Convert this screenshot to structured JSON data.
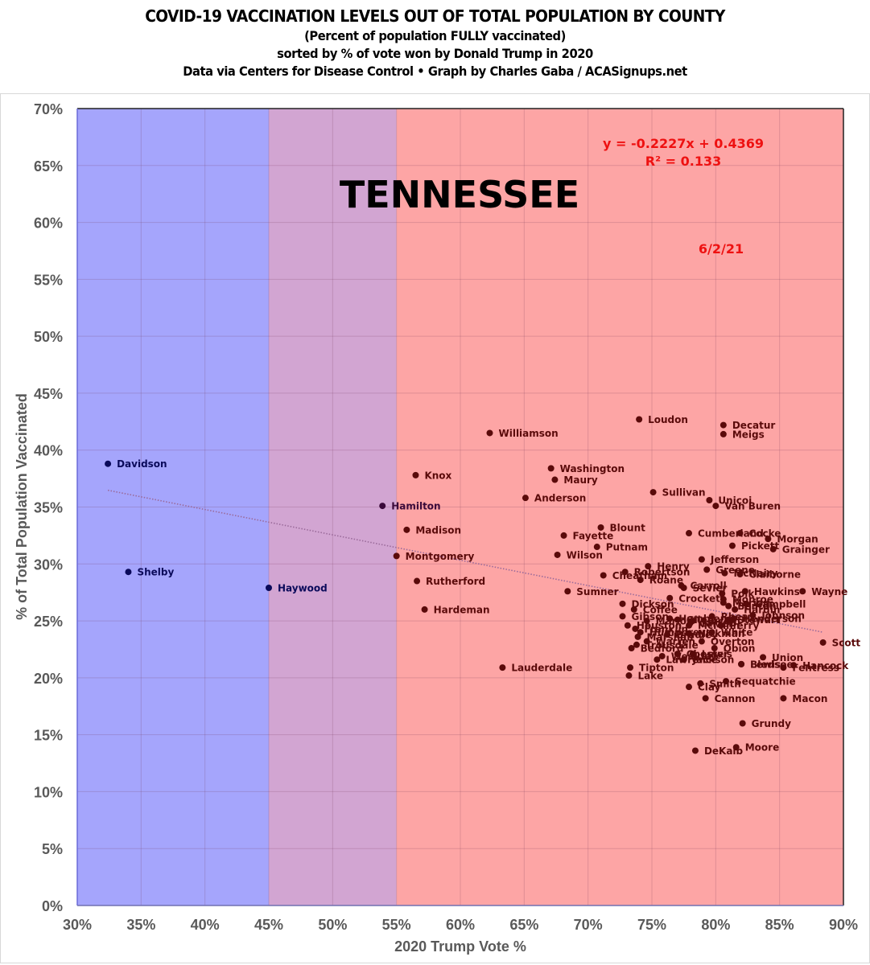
{
  "header": {
    "title": "COVID-19 VACCINATION LEVELS OUT OF TOTAL POPULATION BY COUNTY",
    "subtitle1": "(Percent of population FULLY vaccinated)",
    "subtitle2": "sorted by % of vote won by Donald Trump in 2020",
    "subtitle3": "Data via Centers for Disease Control • Graph by Charles Gaba / ACASignups.net"
  },
  "chart_data": {
    "type": "scatter",
    "title": "COVID-19 VACCINATION LEVELS OUT OF TOTAL POPULATION BY COUNTY",
    "state_label": "TENNESSEE",
    "date_label": "6/2/21",
    "xlabel": "2020 Trump Vote %",
    "ylabel": "% of Total Population Vaccinated",
    "xlim": [
      30,
      90
    ],
    "ylim": [
      0,
      70
    ],
    "x_ticks": [
      "30%",
      "35%",
      "40%",
      "45%",
      "50%",
      "55%",
      "60%",
      "65%",
      "70%",
      "75%",
      "80%",
      "85%",
      "90%"
    ],
    "y_ticks": [
      "0%",
      "5%",
      "10%",
      "15%",
      "20%",
      "25%",
      "30%",
      "35%",
      "40%",
      "45%",
      "50%",
      "55%",
      "60%",
      "65%",
      "70%"
    ],
    "grid": true,
    "background_bands": [
      {
        "from": 30,
        "to": 45,
        "color": "#a5a5fc",
        "meaning": "Biden-won"
      },
      {
        "from": 45,
        "to": 55,
        "color": "#d2a5d2",
        "meaning": "swing"
      },
      {
        "from": 55,
        "to": 90,
        "color": "#fda5a5",
        "meaning": "Trump-won"
      }
    ],
    "trendline": {
      "equation": "y = -0.2227x + 0.4369",
      "r_squared": "R² = 0.133",
      "slope": -0.2227,
      "intercept": 0.4369,
      "x_range": [
        32.4,
        88.4
      ]
    },
    "colors": {
      "blue_point": "#0a0a5a",
      "red_point": "#5a0a0a",
      "purple_point": "#3a0a3a",
      "equation": "#ee1111"
    },
    "points": [
      {
        "name": "Davidson",
        "x": 32.4,
        "y": 38.8,
        "c": "blue"
      },
      {
        "name": "Shelby",
        "x": 34.0,
        "y": 29.3,
        "c": "blue"
      },
      {
        "name": "Haywood",
        "x": 45.0,
        "y": 27.9,
        "c": "blue"
      },
      {
        "name": "Hamilton",
        "x": 53.9,
        "y": 35.1,
        "c": "purple"
      },
      {
        "name": "Montgomery",
        "x": 55.0,
        "y": 30.7,
        "c": "red"
      },
      {
        "name": "Knox",
        "x": 56.5,
        "y": 37.8,
        "c": "red"
      },
      {
        "name": "Madison",
        "x": 55.8,
        "y": 33.0,
        "c": "red"
      },
      {
        "name": "Rutherford",
        "x": 56.6,
        "y": 28.5,
        "c": "red"
      },
      {
        "name": "Hardeman",
        "x": 57.2,
        "y": 26.0,
        "c": "red"
      },
      {
        "name": "Williamson",
        "x": 62.3,
        "y": 41.5,
        "c": "red"
      },
      {
        "name": "Lauderdale",
        "x": 63.3,
        "y": 20.9,
        "c": "red"
      },
      {
        "name": "Anderson",
        "x": 65.1,
        "y": 35.8,
        "c": "red"
      },
      {
        "name": "Washington",
        "x": 67.1,
        "y": 38.4,
        "c": "red"
      },
      {
        "name": "Maury",
        "x": 67.4,
        "y": 37.4,
        "c": "red"
      },
      {
        "name": "Wilson",
        "x": 67.6,
        "y": 30.8,
        "c": "red"
      },
      {
        "name": "Fayette",
        "x": 68.1,
        "y": 32.5,
        "c": "red"
      },
      {
        "name": "Sumner",
        "x": 68.4,
        "y": 27.6,
        "c": "red"
      },
      {
        "name": "Putnam",
        "x": 70.7,
        "y": 31.5,
        "c": "red"
      },
      {
        "name": "Blount",
        "x": 71.0,
        "y": 33.2,
        "c": "red"
      },
      {
        "name": "Cheatham",
        "x": 71.2,
        "y": 29.0,
        "c": "red"
      },
      {
        "name": "Dickson",
        "x": 72.7,
        "y": 26.5,
        "c": "red"
      },
      {
        "name": "Gibson",
        "x": 72.7,
        "y": 25.4,
        "c": "red"
      },
      {
        "name": "Robertson",
        "x": 72.9,
        "y": 29.3,
        "c": "red"
      },
      {
        "name": "Houston",
        "x": 73.1,
        "y": 24.6,
        "c": "red"
      },
      {
        "name": "Tipton",
        "x": 73.3,
        "y": 20.9,
        "c": "red"
      },
      {
        "name": "Lake",
        "x": 73.2,
        "y": 20.2,
        "c": "red"
      },
      {
        "name": "Bedford",
        "x": 73.4,
        "y": 22.6,
        "c": "red"
      },
      {
        "name": "Coffee",
        "x": 73.6,
        "y": 26.0,
        "c": "red"
      },
      {
        "name": "Franklin",
        "x": 73.7,
        "y": 24.3,
        "c": "red"
      },
      {
        "name": "Marshall",
        "x": 73.9,
        "y": 23.6,
        "c": "red"
      },
      {
        "name": "Humphreys",
        "x": 74.1,
        "y": 24.0,
        "c": "red"
      },
      {
        "name": "Trousdale",
        "x": 73.8,
        "y": 22.9,
        "c": "red"
      },
      {
        "name": "Loudon",
        "x": 74.0,
        "y": 42.7,
        "c": "red"
      },
      {
        "name": "Roane",
        "x": 74.1,
        "y": 28.6,
        "c": "red"
      },
      {
        "name": "Warren",
        "x": 74.6,
        "y": 23.2,
        "c": "red"
      },
      {
        "name": "Henry",
        "x": 74.7,
        "y": 29.8,
        "c": "red"
      },
      {
        "name": "Marion",
        "x": 74.6,
        "y": 25.0,
        "c": "red"
      },
      {
        "name": "Sullivan",
        "x": 75.1,
        "y": 36.3,
        "c": "red"
      },
      {
        "name": "Lawrence",
        "x": 75.4,
        "y": 21.6,
        "c": "red"
      },
      {
        "name": "Weakley",
        "x": 75.8,
        "y": 21.9,
        "c": "red"
      },
      {
        "name": "Bradley",
        "x": 76.2,
        "y": 23.8,
        "c": "red"
      },
      {
        "name": "Crockett",
        "x": 76.4,
        "y": 27.0,
        "c": "red"
      },
      {
        "name": "Hamblen",
        "x": 76.4,
        "y": 25.2,
        "c": "red"
      },
      {
        "name": "Chester",
        "x": 77.0,
        "y": 22.1,
        "c": "red"
      },
      {
        "name": "Jackson",
        "x": 77.5,
        "y": 21.6,
        "c": "red"
      },
      {
        "name": "Sevier",
        "x": 77.5,
        "y": 27.9,
        "c": "red"
      },
      {
        "name": "Carroll",
        "x": 77.3,
        "y": 28.1,
        "c": "red"
      },
      {
        "name": "Giles",
        "x": 77.0,
        "y": 25.1,
        "c": "red"
      },
      {
        "name": "Lincoln",
        "x": 78.2,
        "y": 25.0,
        "c": "red"
      },
      {
        "name": "McMinn",
        "x": 77.9,
        "y": 24.6,
        "c": "red"
      },
      {
        "name": "Carter",
        "x": 78.0,
        "y": 24.8,
        "c": "red"
      },
      {
        "name": "Lewis",
        "x": 78.2,
        "y": 22.1,
        "c": "red"
      },
      {
        "name": "Hickman",
        "x": 77.9,
        "y": 23.9,
        "c": "red"
      },
      {
        "name": "Clay",
        "x": 77.9,
        "y": 19.2,
        "c": "red"
      },
      {
        "name": "Cumberland",
        "x": 77.9,
        "y": 32.7,
        "c": "red"
      },
      {
        "name": "DeKalb",
        "x": 78.4,
        "y": 13.6,
        "c": "red"
      },
      {
        "name": "Smith",
        "x": 78.8,
        "y": 19.5,
        "c": "red"
      },
      {
        "name": "Jefferson",
        "x": 78.9,
        "y": 30.4,
        "c": "red"
      },
      {
        "name": "Overton",
        "x": 78.9,
        "y": 23.2,
        "c": "red"
      },
      {
        "name": "Cannon",
        "x": 79.2,
        "y": 18.2,
        "c": "red"
      },
      {
        "name": "Greene",
        "x": 79.3,
        "y": 29.5,
        "c": "red"
      },
      {
        "name": "Unicoi",
        "x": 79.5,
        "y": 35.6,
        "c": "red"
      },
      {
        "name": "White",
        "x": 79.7,
        "y": 24.0,
        "c": "red"
      },
      {
        "name": "Obion",
        "x": 79.9,
        "y": 22.6,
        "c": "red"
      },
      {
        "name": "Van Buren",
        "x": 80.0,
        "y": 35.1,
        "c": "red"
      },
      {
        "name": "Rhea",
        "x": 79.7,
        "y": 25.4,
        "c": "red"
      },
      {
        "name": "Perry",
        "x": 80.4,
        "y": 24.6,
        "c": "red"
      },
      {
        "name": "Decatur",
        "x": 80.6,
        "y": 42.2,
        "c": "red"
      },
      {
        "name": "Meigs",
        "x": 80.6,
        "y": 41.4,
        "c": "red"
      },
      {
        "name": "Polk",
        "x": 80.5,
        "y": 27.4,
        "c": "red"
      },
      {
        "name": "McNairy",
        "x": 80.7,
        "y": 29.2,
        "c": "red"
      },
      {
        "name": "Monroe",
        "x": 80.6,
        "y": 26.9,
        "c": "red"
      },
      {
        "name": "Marion",
        "x": 80.6,
        "y": 26.6,
        "c": "red"
      },
      {
        "name": "Sequatchie",
        "x": 80.8,
        "y": 19.7,
        "c": "red"
      },
      {
        "name": "Benton",
        "x": 81.0,
        "y": 26.3,
        "c": "red"
      },
      {
        "name": "Stewart",
        "x": 81.0,
        "y": 25.1,
        "c": "red"
      },
      {
        "name": "Pickett",
        "x": 81.3,
        "y": 31.6,
        "c": "red"
      },
      {
        "name": "Henderson",
        "x": 81.4,
        "y": 25.2,
        "c": "red"
      },
      {
        "name": "Hardin",
        "x": 81.5,
        "y": 26.0,
        "c": "red"
      },
      {
        "name": "Moore",
        "x": 81.6,
        "y": 13.9,
        "c": "red"
      },
      {
        "name": "Cocke",
        "x": 81.9,
        "y": 32.7,
        "c": "red"
      },
      {
        "name": "Bledsoe",
        "x": 82.0,
        "y": 21.2,
        "c": "red"
      },
      {
        "name": "Grundy",
        "x": 82.1,
        "y": 16.0,
        "c": "red"
      },
      {
        "name": "Hawkins",
        "x": 82.3,
        "y": 27.6,
        "c": "red"
      },
      {
        "name": "Claiborne",
        "x": 81.9,
        "y": 29.1,
        "c": "red"
      },
      {
        "name": "Lewis",
        "x": 82.0,
        "y": 21.2,
        "c": "red"
      },
      {
        "name": "Campbell",
        "x": 82.4,
        "y": 26.5,
        "c": "red"
      },
      {
        "name": "Johnson",
        "x": 82.9,
        "y": 25.5,
        "c": "red"
      },
      {
        "name": "Union",
        "x": 83.7,
        "y": 21.8,
        "c": "red"
      },
      {
        "name": "Morgan",
        "x": 84.1,
        "y": 32.2,
        "c": "red"
      },
      {
        "name": "Grainger",
        "x": 84.5,
        "y": 31.3,
        "c": "red"
      },
      {
        "name": "Fentress",
        "x": 85.3,
        "y": 20.9,
        "c": "red"
      },
      {
        "name": "Macon",
        "x": 85.3,
        "y": 18.2,
        "c": "red"
      },
      {
        "name": "Hancock",
        "x": 86.1,
        "y": 21.1,
        "c": "red"
      },
      {
        "name": "Wayne",
        "x": 86.8,
        "y": 27.6,
        "c": "red"
      },
      {
        "name": "Scott",
        "x": 88.4,
        "y": 23.1,
        "c": "red"
      }
    ]
  }
}
